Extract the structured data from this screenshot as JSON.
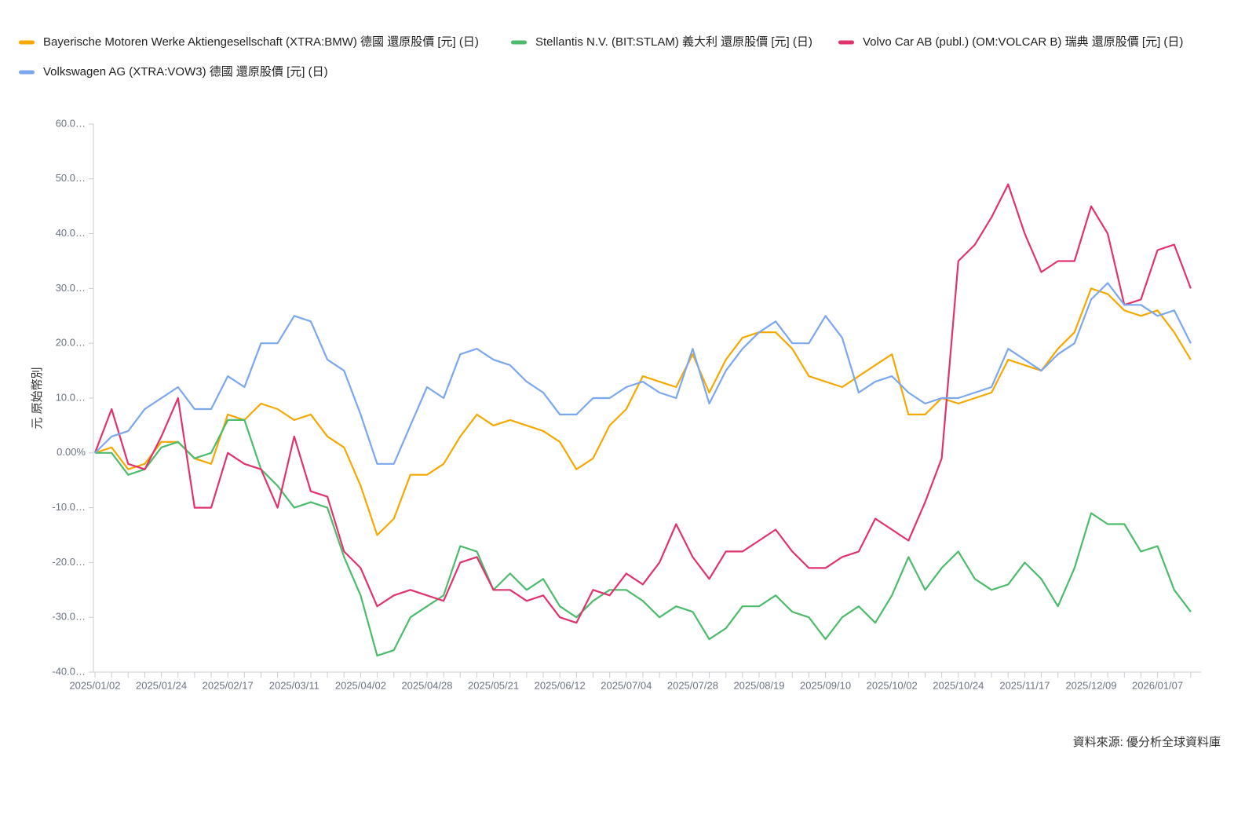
{
  "chart_data": {
    "type": "line",
    "y_label": "元 原始幣別",
    "source": "資料來源: 優分析全球資料庫",
    "categories": [
      "2025/01/02",
      null,
      null,
      null,
      "2025/01/24",
      null,
      null,
      null,
      "2025/02/17",
      null,
      null,
      null,
      "2025/03/11",
      null,
      null,
      null,
      "2025/04/02",
      null,
      null,
      null,
      "2025/04/28",
      null,
      null,
      null,
      "2025/05/21",
      null,
      null,
      null,
      "2025/06/12",
      null,
      null,
      null,
      "2025/07/04",
      null,
      null,
      null,
      "2025/07/28",
      null,
      null,
      null,
      "2025/08/19",
      null,
      null,
      null,
      "2025/09/10",
      null,
      null,
      null,
      "2025/10/02",
      null,
      null,
      null,
      "2025/10/24",
      null,
      null,
      null,
      "2025/11/17",
      null,
      null,
      null,
      "2025/12/09",
      null,
      null,
      null,
      "2026/01/07",
      null,
      null
    ],
    "ylim": [
      -40,
      60
    ],
    "yticks": [
      {
        "value": -40,
        "label": "-40.0…"
      },
      {
        "value": -30,
        "label": "-30.0…"
      },
      {
        "value": -20,
        "label": "-20.0…"
      },
      {
        "value": -10,
        "label": "-10.0…"
      },
      {
        "value": 0,
        "label": "0.00%"
      },
      {
        "value": 10,
        "label": "10.0…"
      },
      {
        "value": 20,
        "label": "20.0…"
      },
      {
        "value": 30,
        "label": "30.0…"
      },
      {
        "value": 40,
        "label": "40.0…"
      },
      {
        "value": 50,
        "label": "50.0…"
      },
      {
        "value": 60,
        "label": "60.0…"
      }
    ],
    "series": [
      {
        "name": "Bayerische Motoren Werke Aktiengesellschaft (XTRA:BMW) 德國 還原股價 [元] (日)",
        "color": "#f5a800",
        "values": [
          0,
          1,
          -3,
          -2,
          2,
          2,
          -1,
          -2,
          7,
          6,
          9,
          8,
          6,
          7,
          3,
          1,
          -6,
          -15,
          -12,
          -4,
          -4,
          -2,
          3,
          7,
          5,
          6,
          5,
          4,
          2,
          -3,
          -1,
          5,
          8,
          14,
          13,
          12,
          18,
          11,
          17,
          21,
          22,
          22,
          19,
          14,
          13,
          12,
          14,
          16,
          18,
          7,
          7,
          10,
          9,
          10,
          11,
          17,
          16,
          15,
          19,
          22,
          30,
          29,
          26,
          25,
          26,
          22,
          17
        ]
      },
      {
        "name": "Stellantis N.V. (BIT:STLAM) 義大利 還原股價 [元] (日)",
        "color": "#4cbb6c",
        "values": [
          0,
          0,
          -4,
          -3,
          1,
          2,
          -1,
          0,
          6,
          6,
          -3,
          -6,
          -10,
          -9,
          -10,
          -19,
          -26,
          -37,
          -36,
          -30,
          -28,
          -26,
          -17,
          -18,
          -25,
          -22,
          -25,
          -23,
          -28,
          -30,
          -27,
          -25,
          -25,
          -27,
          -30,
          -28,
          -29,
          -34,
          -32,
          -28,
          -28,
          -26,
          -29,
          -30,
          -34,
          -30,
          -28,
          -31,
          -26,
          -19,
          -25,
          -21,
          -18,
          -23,
          -25,
          -24,
          -20,
          -23,
          -28,
          -21,
          -11,
          -13,
          -13,
          -18,
          -17,
          -25,
          -29
        ]
      },
      {
        "name": "Volvo Car AB (publ.) (OM:VOLCAR B) 瑞典 還原股價 [元] (日)",
        "color": "#e0336e",
        "values": [
          0,
          8,
          -2,
          -3,
          3,
          10,
          -10,
          -10,
          0,
          -2,
          -3,
          -10,
          3,
          -7,
          -8,
          -18,
          -21,
          -28,
          -26,
          -25,
          -26,
          -27,
          -20,
          -19,
          -25,
          -25,
          -27,
          -26,
          -30,
          -31,
          -25,
          -26,
          -22,
          -24,
          -20,
          -13,
          -19,
          -23,
          -18,
          -18,
          -16,
          -14,
          -18,
          -21,
          -21,
          -19,
          -18,
          -12,
          -14,
          -16,
          -9,
          -1,
          35,
          38,
          43,
          49,
          40,
          33,
          35,
          35,
          45,
          40,
          27,
          28,
          37,
          38,
          30
        ]
      },
      {
        "name": "Volkswagen AG (XTRA:VOW3) 德國 還原股價 [元] (日)",
        "color": "#7ba7ef",
        "values": [
          0,
          3,
          4,
          8,
          10,
          12,
          8,
          8,
          14,
          12,
          20,
          20,
          25,
          24,
          17,
          15,
          7,
          -2,
          -2,
          5,
          12,
          10,
          18,
          19,
          17,
          16,
          13,
          11,
          7,
          7,
          10,
          10,
          12,
          13,
          11,
          10,
          19,
          9,
          15,
          19,
          22,
          24,
          20,
          20,
          25,
          21,
          11,
          13,
          14,
          11,
          9,
          10,
          10,
          11,
          12,
          19,
          17,
          15,
          18,
          20,
          28,
          31,
          27,
          27,
          25,
          26,
          20
        ]
      }
    ]
  }
}
